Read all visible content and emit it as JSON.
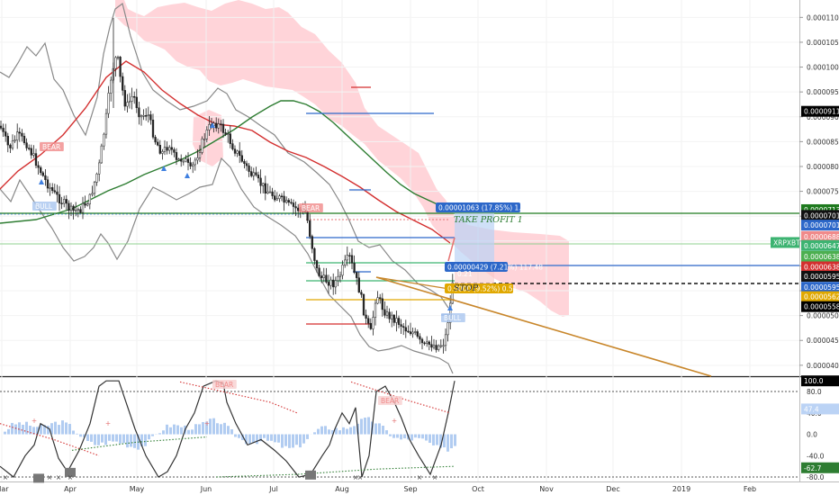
{
  "chart_data": {
    "type": "candlestick",
    "symbol": "XRPXBT",
    "price_axis": {
      "range": [
        3.78e-05,
        0.0001135
      ],
      "ticks": [
        "0.00004000",
        "0.00004500",
        "0.00005000",
        "0.00005500",
        "0.00006000",
        "0.00006500",
        "0.00007000",
        "0.00007500",
        "0.00008000",
        "0.00008500",
        "0.00009000",
        "0.00009500",
        "0.00010000",
        "0.00010500",
        "0.00011000"
      ],
      "badges": [
        {
          "label": "0.00009110",
          "value": 9.11e-05,
          "color": "#000000"
        },
        {
          "label": "0.00007131",
          "value": 7.131e-05,
          "color": "#1e7a1e"
        },
        {
          "label": "0.00007015",
          "value": 7.015e-05,
          "color": "#111111"
        },
        {
          "label": "0.00007018",
          "value": 6.82e-05,
          "color": "#2c67c9"
        },
        {
          "label": "0.00006880",
          "value": 6.59e-05,
          "color": "#f08a8a"
        },
        {
          "label": "XRPXBT",
          "value": 6.47e-05,
          "color": "#3cb371",
          "side": "left"
        },
        {
          "label": "0.00006475",
          "value": 6.41e-05,
          "color": "#3cb371"
        },
        {
          "label": "0.00006384",
          "value": 6.19e-05,
          "color": "#4caf50"
        },
        {
          "label": "0.00006380",
          "value": 5.98e-05,
          "color": "#d32f2f"
        },
        {
          "label": "0.00005955",
          "value": 5.79e-05,
          "color": "#111111"
        },
        {
          "label": "0.00005953",
          "value": 5.57e-05,
          "color": "#2c67c9"
        },
        {
          "label": "0.00005624",
          "value": 5.38e-05,
          "color": "#e0a800"
        },
        {
          "label": "0.00005581",
          "value": 5.18e-05,
          "color": "#000000"
        }
      ]
    },
    "x_axis": {
      "labels": [
        "Mar",
        "Apr",
        "May",
        "Jun",
        "Jul",
        "Aug",
        "Sep",
        "Oct",
        "Nov",
        "Dec",
        "2019",
        "Feb"
      ]
    },
    "osc_axis": {
      "range": [
        -85,
        102
      ],
      "ticks": [
        "80.0",
        "40.0",
        "0.0",
        "-40.0",
        "-80.0"
      ],
      "badges": [
        {
          "label": "100.0",
          "value": 100,
          "color": "#000000"
        },
        {
          "label": "47.4",
          "value": 47.4,
          "color": "#bbd3f5",
          "text": "#333333"
        },
        {
          "label": "-62.7",
          "value": -62.7,
          "color": "#2e7d32"
        }
      ]
    },
    "annotations": {
      "take_profit_1": "TAKE PROFIT 1",
      "take_profit_box": "0.00001063 (17.85%) 1.22",
      "entry_box": "0.00000429 (7.21%) 117.48",
      "entry_sub": "0.21",
      "stop_label": "STOP",
      "stop_box": "0.0000 (9.52%) 0.51",
      "bear_label": "BEAR",
      "bull_label": "BULL"
    }
  }
}
